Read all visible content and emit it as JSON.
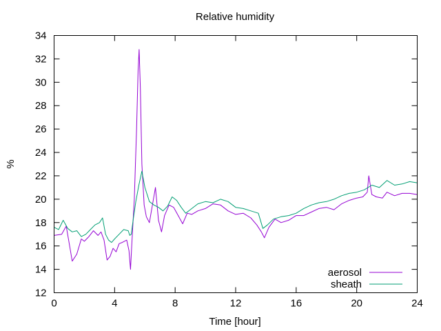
{
  "chart_data": {
    "type": "line",
    "title": "Relative humidity",
    "xlabel": "Time [hour]",
    "ylabel": "%",
    "xlim": [
      0,
      24
    ],
    "ylim": [
      12,
      34
    ],
    "xticks": [
      0,
      4,
      8,
      12,
      16,
      20,
      24
    ],
    "yticks": [
      12,
      14,
      16,
      18,
      20,
      22,
      24,
      26,
      28,
      30,
      32,
      34
    ],
    "grid": false,
    "legend_position": "bottom-right",
    "series": [
      {
        "name": "aerosol",
        "color": "#9400d3",
        "x": [
          0,
          0.5,
          0.8,
          1.0,
          1.2,
          1.5,
          1.8,
          2.0,
          2.3,
          2.6,
          2.9,
          3.1,
          3.3,
          3.5,
          3.7,
          3.9,
          4.1,
          4.3,
          4.5,
          4.8,
          4.95,
          5.05,
          5.15,
          5.3,
          5.45,
          5.55,
          5.62,
          5.7,
          5.8,
          5.95,
          6.1,
          6.3,
          6.5,
          6.7,
          6.9,
          7.1,
          7.3,
          7.6,
          7.9,
          8.2,
          8.5,
          8.8,
          9.1,
          9.5,
          10.0,
          10.5,
          11.0,
          11.5,
          12.0,
          12.5,
          13.0,
          13.4,
          13.7,
          13.9,
          14.2,
          14.6,
          15.0,
          15.5,
          16.0,
          16.5,
          17.0,
          17.5,
          18.0,
          18.5,
          19.0,
          19.5,
          20.0,
          20.4,
          20.7,
          20.8,
          21.0,
          21.3,
          21.7,
          22.0,
          22.5,
          23.0,
          23.5,
          24.0
        ],
        "y": [
          16.9,
          17.0,
          17.7,
          16.2,
          14.7,
          15.3,
          16.6,
          16.4,
          16.8,
          17.3,
          16.9,
          17.2,
          16.5,
          14.8,
          15.1,
          15.8,
          15.5,
          16.2,
          16.3,
          16.5,
          15.6,
          14.0,
          16.5,
          20.0,
          26.0,
          31.0,
          32.8,
          29.5,
          23.0,
          19.5,
          18.5,
          18.0,
          19.5,
          21.0,
          18.2,
          17.2,
          18.6,
          19.5,
          19.3,
          18.6,
          17.9,
          18.8,
          18.7,
          19.0,
          19.2,
          19.6,
          19.5,
          19.0,
          18.7,
          18.8,
          18.4,
          17.8,
          17.2,
          16.7,
          17.6,
          18.3,
          18.0,
          18.2,
          18.6,
          18.6,
          18.9,
          19.2,
          19.3,
          19.1,
          19.6,
          19.9,
          20.1,
          20.2,
          20.6,
          22.0,
          20.4,
          20.2,
          20.1,
          20.6,
          20.3,
          20.5,
          20.5,
          20.4
        ]
      },
      {
        "name": "sheath",
        "color": "#009e73",
        "x": [
          0,
          0.3,
          0.6,
          0.9,
          1.2,
          1.5,
          1.8,
          2.1,
          2.4,
          2.7,
          3.0,
          3.2,
          3.4,
          3.6,
          3.8,
          4.0,
          4.3,
          4.6,
          4.9,
          5.0,
          5.1,
          5.2,
          5.4,
          5.6,
          5.8,
          6.0,
          6.3,
          6.6,
          6.9,
          7.2,
          7.5,
          7.8,
          8.1,
          8.4,
          8.7,
          9.0,
          9.5,
          10.0,
          10.5,
          11.0,
          11.5,
          12.0,
          12.5,
          13.0,
          13.5,
          13.8,
          14.1,
          14.5,
          15.0,
          15.5,
          16.0,
          16.5,
          17.0,
          17.5,
          18.0,
          18.5,
          19.0,
          19.5,
          20.0,
          20.5,
          21.0,
          21.5,
          22.0,
          22.5,
          23.0,
          23.5,
          24.0
        ],
        "y": [
          17.6,
          17.4,
          18.2,
          17.5,
          17.2,
          17.3,
          16.8,
          17.0,
          17.4,
          17.8,
          18.0,
          18.4,
          17.0,
          16.5,
          16.3,
          16.6,
          17.0,
          17.4,
          17.3,
          16.9,
          17.0,
          18.0,
          19.8,
          21.2,
          22.4,
          21.0,
          19.8,
          19.5,
          19.3,
          19.0,
          19.4,
          20.2,
          19.9,
          19.3,
          18.8,
          19.1,
          19.6,
          19.8,
          19.7,
          20.0,
          19.8,
          19.3,
          19.2,
          19.0,
          18.8,
          17.5,
          17.8,
          18.3,
          18.5,
          18.6,
          18.8,
          19.2,
          19.5,
          19.7,
          19.8,
          20.0,
          20.3,
          20.5,
          20.6,
          20.8,
          21.2,
          21.0,
          21.6,
          21.2,
          21.3,
          21.5,
          21.4
        ]
      }
    ]
  }
}
